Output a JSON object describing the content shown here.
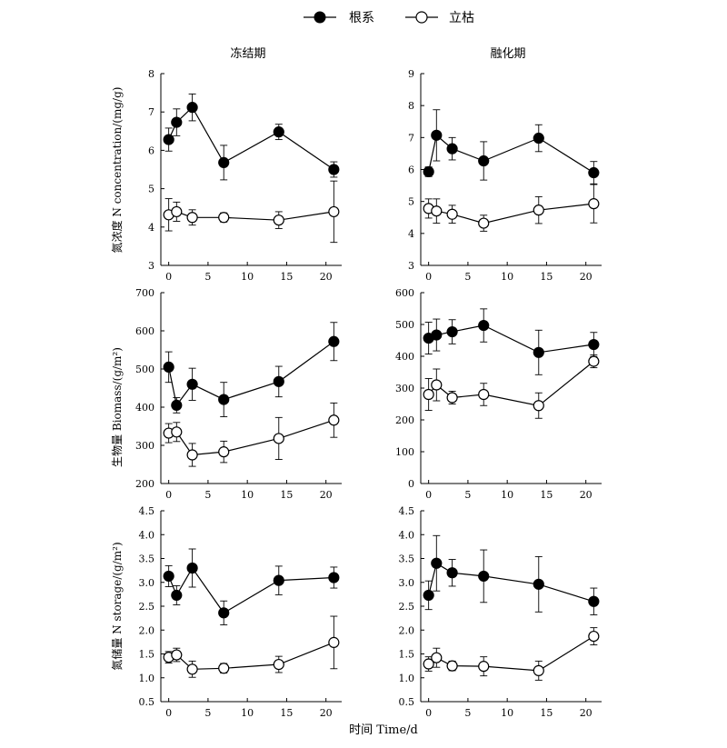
{
  "figure": {
    "legend": [
      {
        "name": "根系",
        "marker": "filled-circle",
        "color": "#000000"
      },
      {
        "name": "立枯",
        "marker": "open-circle",
        "color": "#000000"
      }
    ],
    "column_titles": [
      "冻结期",
      "融化期"
    ],
    "row_ylabels": [
      "氮浓度 N concentration/(mg/g)",
      "生物量 Biomass/(g/m²)",
      "氮储量 N storage/(g/m²)"
    ],
    "xlabel": "时间 Time/d"
  },
  "chart_data": [
    {
      "type": "scatter",
      "panel": "freeze-concentration",
      "column": 0,
      "row": 0,
      "x": [
        0,
        1,
        3,
        7,
        14,
        21
      ],
      "xlim": [
        -1,
        22
      ],
      "xticks": [
        0,
        5,
        10,
        15,
        20
      ],
      "ylim": [
        3,
        8
      ],
      "yticks": [
        3,
        4,
        5,
        6,
        7,
        8
      ],
      "ydecimals": 0,
      "series": [
        {
          "name": "根系",
          "values": [
            6.28,
            6.73,
            7.12,
            5.68,
            6.48,
            5.5
          ],
          "errors": [
            0.3,
            0.35,
            0.35,
            0.45,
            0.2,
            0.2
          ]
        },
        {
          "name": "立枯",
          "values": [
            4.32,
            4.4,
            4.25,
            4.25,
            4.18,
            4.4
          ],
          "errors": [
            0.42,
            0.25,
            0.2,
            0.12,
            0.22,
            0.8
          ]
        }
      ]
    },
    {
      "type": "scatter",
      "panel": "thaw-concentration",
      "column": 1,
      "row": 0,
      "x": [
        0,
        1,
        3,
        7,
        14,
        21
      ],
      "xlim": [
        -1,
        22
      ],
      "xticks": [
        0,
        5,
        10,
        15,
        20
      ],
      "ylim": [
        3,
        9
      ],
      "yticks": [
        3,
        4,
        5,
        6,
        7,
        8,
        9
      ],
      "ydecimals": 0,
      "series": [
        {
          "name": "根系",
          "values": [
            5.93,
            7.07,
            6.65,
            6.27,
            6.98,
            5.9
          ],
          "errors": [
            0.15,
            0.8,
            0.35,
            0.6,
            0.42,
            0.35
          ]
        },
        {
          "name": "立枯",
          "values": [
            4.78,
            4.7,
            4.6,
            4.32,
            4.73,
            4.93
          ],
          "errors": [
            0.3,
            0.38,
            0.28,
            0.25,
            0.42,
            0.6
          ]
        }
      ]
    },
    {
      "type": "scatter",
      "panel": "freeze-biomass",
      "column": 0,
      "row": 1,
      "x": [
        0,
        1,
        3,
        7,
        14,
        21
      ],
      "xlim": [
        -1,
        22
      ],
      "xticks": [
        0,
        5,
        10,
        15,
        20
      ],
      "ylim": [
        200,
        700
      ],
      "yticks": [
        200,
        300,
        400,
        500,
        600,
        700
      ],
      "ydecimals": 0,
      "series": [
        {
          "name": "根系",
          "values": [
            505,
            405,
            460,
            420,
            467,
            572
          ],
          "errors": [
            40,
            20,
            42,
            45,
            40,
            50
          ]
        },
        {
          "name": "立枯",
          "values": [
            332,
            335,
            275,
            283,
            318,
            366
          ],
          "errors": [
            25,
            25,
            30,
            28,
            55,
            45
          ]
        }
      ]
    },
    {
      "type": "scatter",
      "panel": "thaw-biomass",
      "column": 1,
      "row": 1,
      "x": [
        0,
        1,
        3,
        7,
        14,
        21
      ],
      "xlim": [
        -1,
        22
      ],
      "xticks": [
        0,
        5,
        10,
        15,
        20
      ],
      "ylim": [
        0,
        600
      ],
      "yticks": [
        0,
        100,
        200,
        300,
        400,
        500,
        600
      ],
      "ydecimals": 0,
      "series": [
        {
          "name": "根系",
          "values": [
            457,
            467,
            477,
            497,
            412,
            437
          ],
          "errors": [
            50,
            50,
            38,
            52,
            70,
            38
          ]
        },
        {
          "name": "立枯",
          "values": [
            280,
            310,
            270,
            280,
            245,
            384
          ],
          "errors": [
            50,
            50,
            20,
            35,
            40,
            20
          ]
        }
      ]
    },
    {
      "type": "scatter",
      "panel": "freeze-storage",
      "column": 0,
      "row": 2,
      "x": [
        0,
        1,
        3,
        7,
        14,
        21
      ],
      "xlim": [
        -1,
        22
      ],
      "xticks": [
        0,
        5,
        10,
        15,
        20
      ],
      "ylim": [
        0.5,
        4.5
      ],
      "yticks": [
        0.5,
        1.0,
        1.5,
        2.0,
        2.5,
        3.0,
        3.5,
        4.0,
        4.5
      ],
      "ydecimals": 1,
      "series": [
        {
          "name": "根系",
          "values": [
            3.13,
            2.73,
            3.3,
            2.36,
            3.04,
            3.1
          ],
          "errors": [
            0.22,
            0.2,
            0.4,
            0.25,
            0.3,
            0.22
          ]
        },
        {
          "name": "立枯",
          "values": [
            1.43,
            1.48,
            1.18,
            1.2,
            1.28,
            1.74
          ],
          "errors": [
            0.12,
            0.14,
            0.17,
            0.1,
            0.17,
            0.55
          ]
        }
      ]
    },
    {
      "type": "scatter",
      "panel": "thaw-storage",
      "column": 1,
      "row": 2,
      "x": [
        0,
        1,
        3,
        7,
        14,
        21
      ],
      "xlim": [
        -1,
        22
      ],
      "xticks": [
        0,
        5,
        10,
        15,
        20
      ],
      "ylim": [
        0.5,
        4.5
      ],
      "yticks": [
        0.5,
        1.0,
        1.5,
        2.0,
        2.5,
        3.0,
        3.5,
        4.0,
        4.5
      ],
      "ydecimals": 1,
      "series": [
        {
          "name": "根系",
          "values": [
            2.73,
            3.4,
            3.2,
            3.13,
            2.96,
            2.6
          ],
          "errors": [
            0.3,
            0.58,
            0.28,
            0.55,
            0.58,
            0.28
          ]
        },
        {
          "name": "立枯",
          "values": [
            1.29,
            1.42,
            1.25,
            1.24,
            1.15,
            1.87
          ],
          "errors": [
            0.15,
            0.2,
            0.1,
            0.2,
            0.2,
            0.18
          ]
        }
      ]
    }
  ]
}
